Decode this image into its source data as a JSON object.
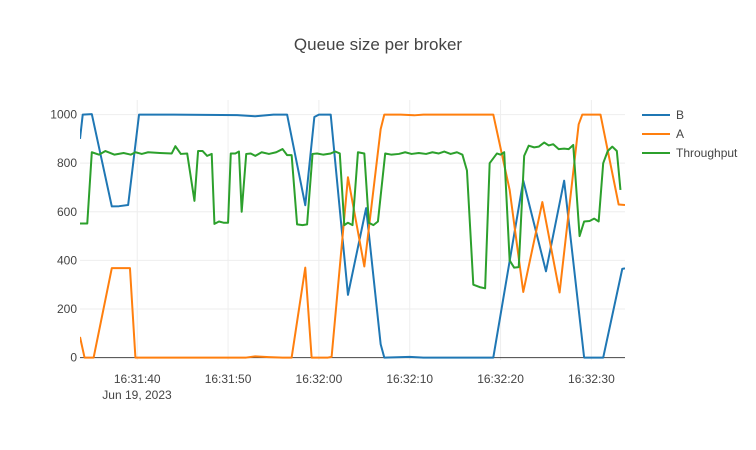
{
  "chart_data": {
    "type": "line",
    "title": "Queue size per broker",
    "xlabel": "",
    "ylabel": "",
    "x_date_label": "Jun 19, 2023",
    "x_ticks": [
      "16:31:40",
      "16:31:50",
      "16:32:00",
      "16:32:10",
      "16:32:20",
      "16:32:30"
    ],
    "x_tick_times": [
      "2023-06-19 16:31:40",
      "2023-06-19 16:31:50",
      "2023-06-19 16:32:00",
      "2023-06-19 16:32:10",
      "2023-06-19 16:32:20",
      "2023-06-19 16:32:30"
    ],
    "xlim": [
      "2023-06-19 16:31:33.7",
      "2023-06-19 16:32:33.7"
    ],
    "y_ticks": [
      "0",
      "200",
      "400",
      "600",
      "800",
      "1000"
    ],
    "ylim": [
      -10,
      1060
    ],
    "grid": true,
    "legend_position": "top-right",
    "series": [
      {
        "name": "B",
        "color": "#1f77b4",
        "points": [
          [
            "2023-06-19 16:31:33.7",
            900
          ],
          [
            "2023-06-19 16:31:34.0",
            1000
          ],
          [
            "2023-06-19 16:31:35.0",
            1002
          ],
          [
            "2023-06-19 16:31:37.2",
            622
          ],
          [
            "2023-06-19 16:31:38.0",
            623
          ],
          [
            "2023-06-19 16:31:39.0",
            628
          ],
          [
            "2023-06-19 16:31:40.2",
            1000
          ],
          [
            "2023-06-19 16:31:44.0",
            1000
          ],
          [
            "2023-06-19 16:31:51.0",
            998
          ],
          [
            "2023-06-19 16:31:53.0",
            993
          ],
          [
            "2023-06-19 16:31:55.0",
            1000
          ],
          [
            "2023-06-19 16:31:56.5",
            1000
          ],
          [
            "2023-06-19 16:31:58.5",
            627
          ],
          [
            "2023-06-19 16:31:59.5",
            990
          ],
          [
            "2023-06-19 16:32:00.0",
            1000
          ],
          [
            "2023-06-19 16:32:01.3",
            1000
          ],
          [
            "2023-06-19 16:32:03.2",
            258
          ],
          [
            "2023-06-19 16:32:05.2",
            615
          ],
          [
            "2023-06-19 16:32:06.8",
            55
          ],
          [
            "2023-06-19 16:32:07.2",
            0
          ],
          [
            "2023-06-19 16:32:10.0",
            3
          ],
          [
            "2023-06-19 16:32:11.5",
            0
          ],
          [
            "2023-06-19 16:32:19.2",
            0
          ],
          [
            "2023-06-19 16:32:22.5",
            728
          ],
          [
            "2023-06-19 16:32:25.0",
            355
          ],
          [
            "2023-06-19 16:32:27.0",
            728
          ],
          [
            "2023-06-19 16:32:29.2",
            0
          ],
          [
            "2023-06-19 16:32:31.3",
            0
          ],
          [
            "2023-06-19 16:32:33.4",
            365
          ],
          [
            "2023-06-19 16:32:33.7",
            367
          ]
        ]
      },
      {
        "name": "A",
        "color": "#ff7f0e",
        "points": [
          [
            "2023-06-19 16:31:33.7",
            85
          ],
          [
            "2023-06-19 16:31:34.2",
            0
          ],
          [
            "2023-06-19 16:31:35.2",
            0
          ],
          [
            "2023-06-19 16:31:37.2",
            368
          ],
          [
            "2023-06-19 16:31:39.2",
            368
          ],
          [
            "2023-06-19 16:31:39.8",
            0
          ],
          [
            "2023-06-19 16:31:45.0",
            0
          ],
          [
            "2023-06-19 16:31:52.0",
            0
          ],
          [
            "2023-06-19 16:31:53.0",
            5
          ],
          [
            "2023-06-19 16:31:54.5",
            2
          ],
          [
            "2023-06-19 16:31:56.0",
            0
          ],
          [
            "2023-06-19 16:31:57.0",
            0
          ],
          [
            "2023-06-19 16:31:58.5",
            370
          ],
          [
            "2023-06-19 16:31:59.2",
            0
          ],
          [
            "2023-06-19 16:32:01.0",
            0
          ],
          [
            "2023-06-19 16:32:01.4",
            3
          ],
          [
            "2023-06-19 16:32:03.2",
            742
          ],
          [
            "2023-06-19 16:32:05.0",
            375
          ],
          [
            "2023-06-19 16:32:06.8",
            940
          ],
          [
            "2023-06-19 16:32:07.2",
            1000
          ],
          [
            "2023-06-19 16:32:09.0",
            1000
          ],
          [
            "2023-06-19 16:32:10.5",
            997
          ],
          [
            "2023-06-19 16:32:11.5",
            1000
          ],
          [
            "2023-06-19 16:32:19.2",
            1000
          ],
          [
            "2023-06-19 16:32:21.0",
            690
          ],
          [
            "2023-06-19 16:32:22.5",
            270
          ],
          [
            "2023-06-19 16:32:24.6",
            640
          ],
          [
            "2023-06-19 16:32:26.5",
            268
          ],
          [
            "2023-06-19 16:32:28.6",
            960
          ],
          [
            "2023-06-19 16:32:29.0",
            1000
          ],
          [
            "2023-06-19 16:32:31.0",
            1000
          ],
          [
            "2023-06-19 16:32:33.0",
            630
          ],
          [
            "2023-06-19 16:32:33.7",
            628
          ]
        ]
      },
      {
        "name": "Throughput",
        "color": "#2ca02c",
        "points": [
          [
            "2023-06-19 16:31:33.7",
            552
          ],
          [
            "2023-06-19 16:31:34.5",
            552
          ],
          [
            "2023-06-19 16:31:35.0",
            845
          ],
          [
            "2023-06-19 16:31:35.8",
            835
          ],
          [
            "2023-06-19 16:31:36.5",
            850
          ],
          [
            "2023-06-19 16:31:37.5",
            835
          ],
          [
            "2023-06-19 16:31:38.5",
            842
          ],
          [
            "2023-06-19 16:31:39.3",
            835
          ],
          [
            "2023-06-19 16:31:39.8",
            845
          ],
          [
            "2023-06-19 16:31:40.5",
            838
          ],
          [
            "2023-06-19 16:31:41.2",
            845
          ],
          [
            "2023-06-19 16:31:42.5",
            842
          ],
          [
            "2023-06-19 16:31:43.8",
            840
          ],
          [
            "2023-06-19 16:31:44.2",
            870
          ],
          [
            "2023-06-19 16:31:44.8",
            838
          ],
          [
            "2023-06-19 16:31:45.5",
            840
          ],
          [
            "2023-06-19 16:31:46.3",
            645
          ],
          [
            "2023-06-19 16:31:46.7",
            850
          ],
          [
            "2023-06-19 16:31:47.2",
            850
          ],
          [
            "2023-06-19 16:31:47.7",
            830
          ],
          [
            "2023-06-19 16:31:48.2",
            838
          ],
          [
            "2023-06-19 16:31:48.5",
            550
          ],
          [
            "2023-06-19 16:31:49.0",
            560
          ],
          [
            "2023-06-19 16:31:49.5",
            555
          ],
          [
            "2023-06-19 16:31:50.0",
            555
          ],
          [
            "2023-06-19 16:31:50.3",
            840
          ],
          [
            "2023-06-19 16:31:50.8",
            840
          ],
          [
            "2023-06-19 16:31:51.2",
            848
          ],
          [
            "2023-06-19 16:31:51.5",
            600
          ],
          [
            "2023-06-19 16:31:52.0",
            838
          ],
          [
            "2023-06-19 16:31:52.5",
            840
          ],
          [
            "2023-06-19 16:31:53.0",
            830
          ],
          [
            "2023-06-19 16:31:53.7",
            845
          ],
          [
            "2023-06-19 16:31:54.5",
            838
          ],
          [
            "2023-06-19 16:31:55.3",
            845
          ],
          [
            "2023-06-19 16:31:56.0",
            858
          ],
          [
            "2023-06-19 16:31:56.5",
            833
          ],
          [
            "2023-06-19 16:31:57.0",
            833
          ],
          [
            "2023-06-19 16:31:57.6",
            548
          ],
          [
            "2023-06-19 16:31:58.2",
            545
          ],
          [
            "2023-06-19 16:31:58.7",
            548
          ],
          [
            "2023-06-19 16:31:59.3",
            838
          ],
          [
            "2023-06-19 16:31:59.8",
            840
          ],
          [
            "2023-06-19 16:32:00.5",
            835
          ],
          [
            "2023-06-19 16:32:01.3",
            840
          ],
          [
            "2023-06-19 16:32:01.8",
            848
          ],
          [
            "2023-06-19 16:32:02.3",
            840
          ],
          [
            "2023-06-19 16:32:02.8",
            545
          ],
          [
            "2023-06-19 16:32:03.2",
            555
          ],
          [
            "2023-06-19 16:32:03.7",
            545
          ],
          [
            "2023-06-19 16:32:04.3",
            845
          ],
          [
            "2023-06-19 16:32:05.0",
            840
          ],
          [
            "2023-06-19 16:32:05.5",
            555
          ],
          [
            "2023-06-19 16:32:06.0",
            545
          ],
          [
            "2023-06-19 16:32:06.5",
            560
          ],
          [
            "2023-06-19 16:32:07.3",
            840
          ],
          [
            "2023-06-19 16:32:08.0",
            835
          ],
          [
            "2023-06-19 16:32:08.8",
            838
          ],
          [
            "2023-06-19 16:32:09.5",
            845
          ],
          [
            "2023-06-19 16:32:10.2",
            838
          ],
          [
            "2023-06-19 16:32:11.0",
            842
          ],
          [
            "2023-06-19 16:32:11.8",
            838
          ],
          [
            "2023-06-19 16:32:12.5",
            845
          ],
          [
            "2023-06-19 16:32:13.2",
            840
          ],
          [
            "2023-06-19 16:32:13.8",
            848
          ],
          [
            "2023-06-19 16:32:14.5",
            838
          ],
          [
            "2023-06-19 16:32:15.2",
            845
          ],
          [
            "2023-06-19 16:32:15.8",
            835
          ],
          [
            "2023-06-19 16:32:16.3",
            770
          ],
          [
            "2023-06-19 16:32:17.0",
            300
          ],
          [
            "2023-06-19 16:32:17.7",
            290
          ],
          [
            "2023-06-19 16:32:18.3",
            285
          ],
          [
            "2023-06-19 16:32:18.8",
            800
          ],
          [
            "2023-06-19 16:32:19.6",
            840
          ],
          [
            "2023-06-19 16:32:20.0",
            835
          ],
          [
            "2023-06-19 16:32:20.4",
            845
          ],
          [
            "2023-06-19 16:32:21.0",
            400
          ],
          [
            "2023-06-19 16:32:21.5",
            370
          ],
          [
            "2023-06-19 16:32:22.0",
            372
          ],
          [
            "2023-06-19 16:32:22.6",
            830
          ],
          [
            "2023-06-19 16:32:23.1",
            872
          ],
          [
            "2023-06-19 16:32:23.7",
            865
          ],
          [
            "2023-06-19 16:32:24.2",
            868
          ],
          [
            "2023-06-19 16:32:24.8",
            885
          ],
          [
            "2023-06-19 16:32:25.3",
            873
          ],
          [
            "2023-06-19 16:32:25.8",
            878
          ],
          [
            "2023-06-19 16:32:26.4",
            858
          ],
          [
            "2023-06-19 16:32:27.0",
            860
          ],
          [
            "2023-06-19 16:32:27.5",
            858
          ],
          [
            "2023-06-19 16:32:28.0",
            875
          ],
          [
            "2023-06-19 16:32:28.7",
            500
          ],
          [
            "2023-06-19 16:32:29.2",
            560
          ],
          [
            "2023-06-19 16:32:29.8",
            562
          ],
          [
            "2023-06-19 16:32:30.3",
            572
          ],
          [
            "2023-06-19 16:32:30.8",
            560
          ],
          [
            "2023-06-19 16:32:31.3",
            800
          ],
          [
            "2023-06-19 16:32:31.8",
            850
          ],
          [
            "2023-06-19 16:32:32.3",
            868
          ],
          [
            "2023-06-19 16:32:32.8",
            850
          ],
          [
            "2023-06-19 16:32:33.2",
            690
          ]
        ]
      }
    ]
  }
}
